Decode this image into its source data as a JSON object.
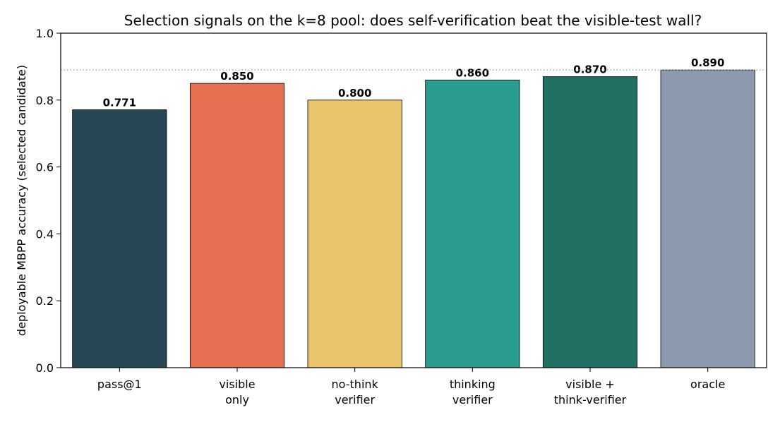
{
  "chart_data": {
    "type": "bar",
    "title": "Selection signals on the k=8 pool: does self-verification beat the visible-test wall?",
    "xlabel": "",
    "ylabel": "deployable MBPP accuracy (selected candidate)",
    "categories": [
      [
        "pass@1"
      ],
      [
        "visible",
        "only"
      ],
      [
        "no-think",
        "verifier"
      ],
      [
        "thinking",
        "verifier"
      ],
      [
        "visible +",
        "think-verifier"
      ],
      [
        "oracle"
      ]
    ],
    "values": [
      0.771,
      0.85,
      0.8,
      0.86,
      0.87,
      0.89
    ],
    "value_labels": [
      "0.771",
      "0.850",
      "0.800",
      "0.860",
      "0.870",
      "0.890"
    ],
    "colors": [
      "#264653",
      "#e76f51",
      "#e9c46a",
      "#2a9d8f",
      "#1f6f63",
      "#8d99ae"
    ],
    "ylim": [
      0,
      1.0
    ],
    "yticks": [
      0.0,
      0.2,
      0.4,
      0.6,
      0.8,
      1.0
    ],
    "ytick_labels": [
      "0.0",
      "0.2",
      "0.4",
      "0.6",
      "0.8",
      "1.0"
    ],
    "reference_line": {
      "value": 0.89,
      "style": "dotted",
      "color": "#999999"
    },
    "grid": false,
    "legend": "none"
  }
}
